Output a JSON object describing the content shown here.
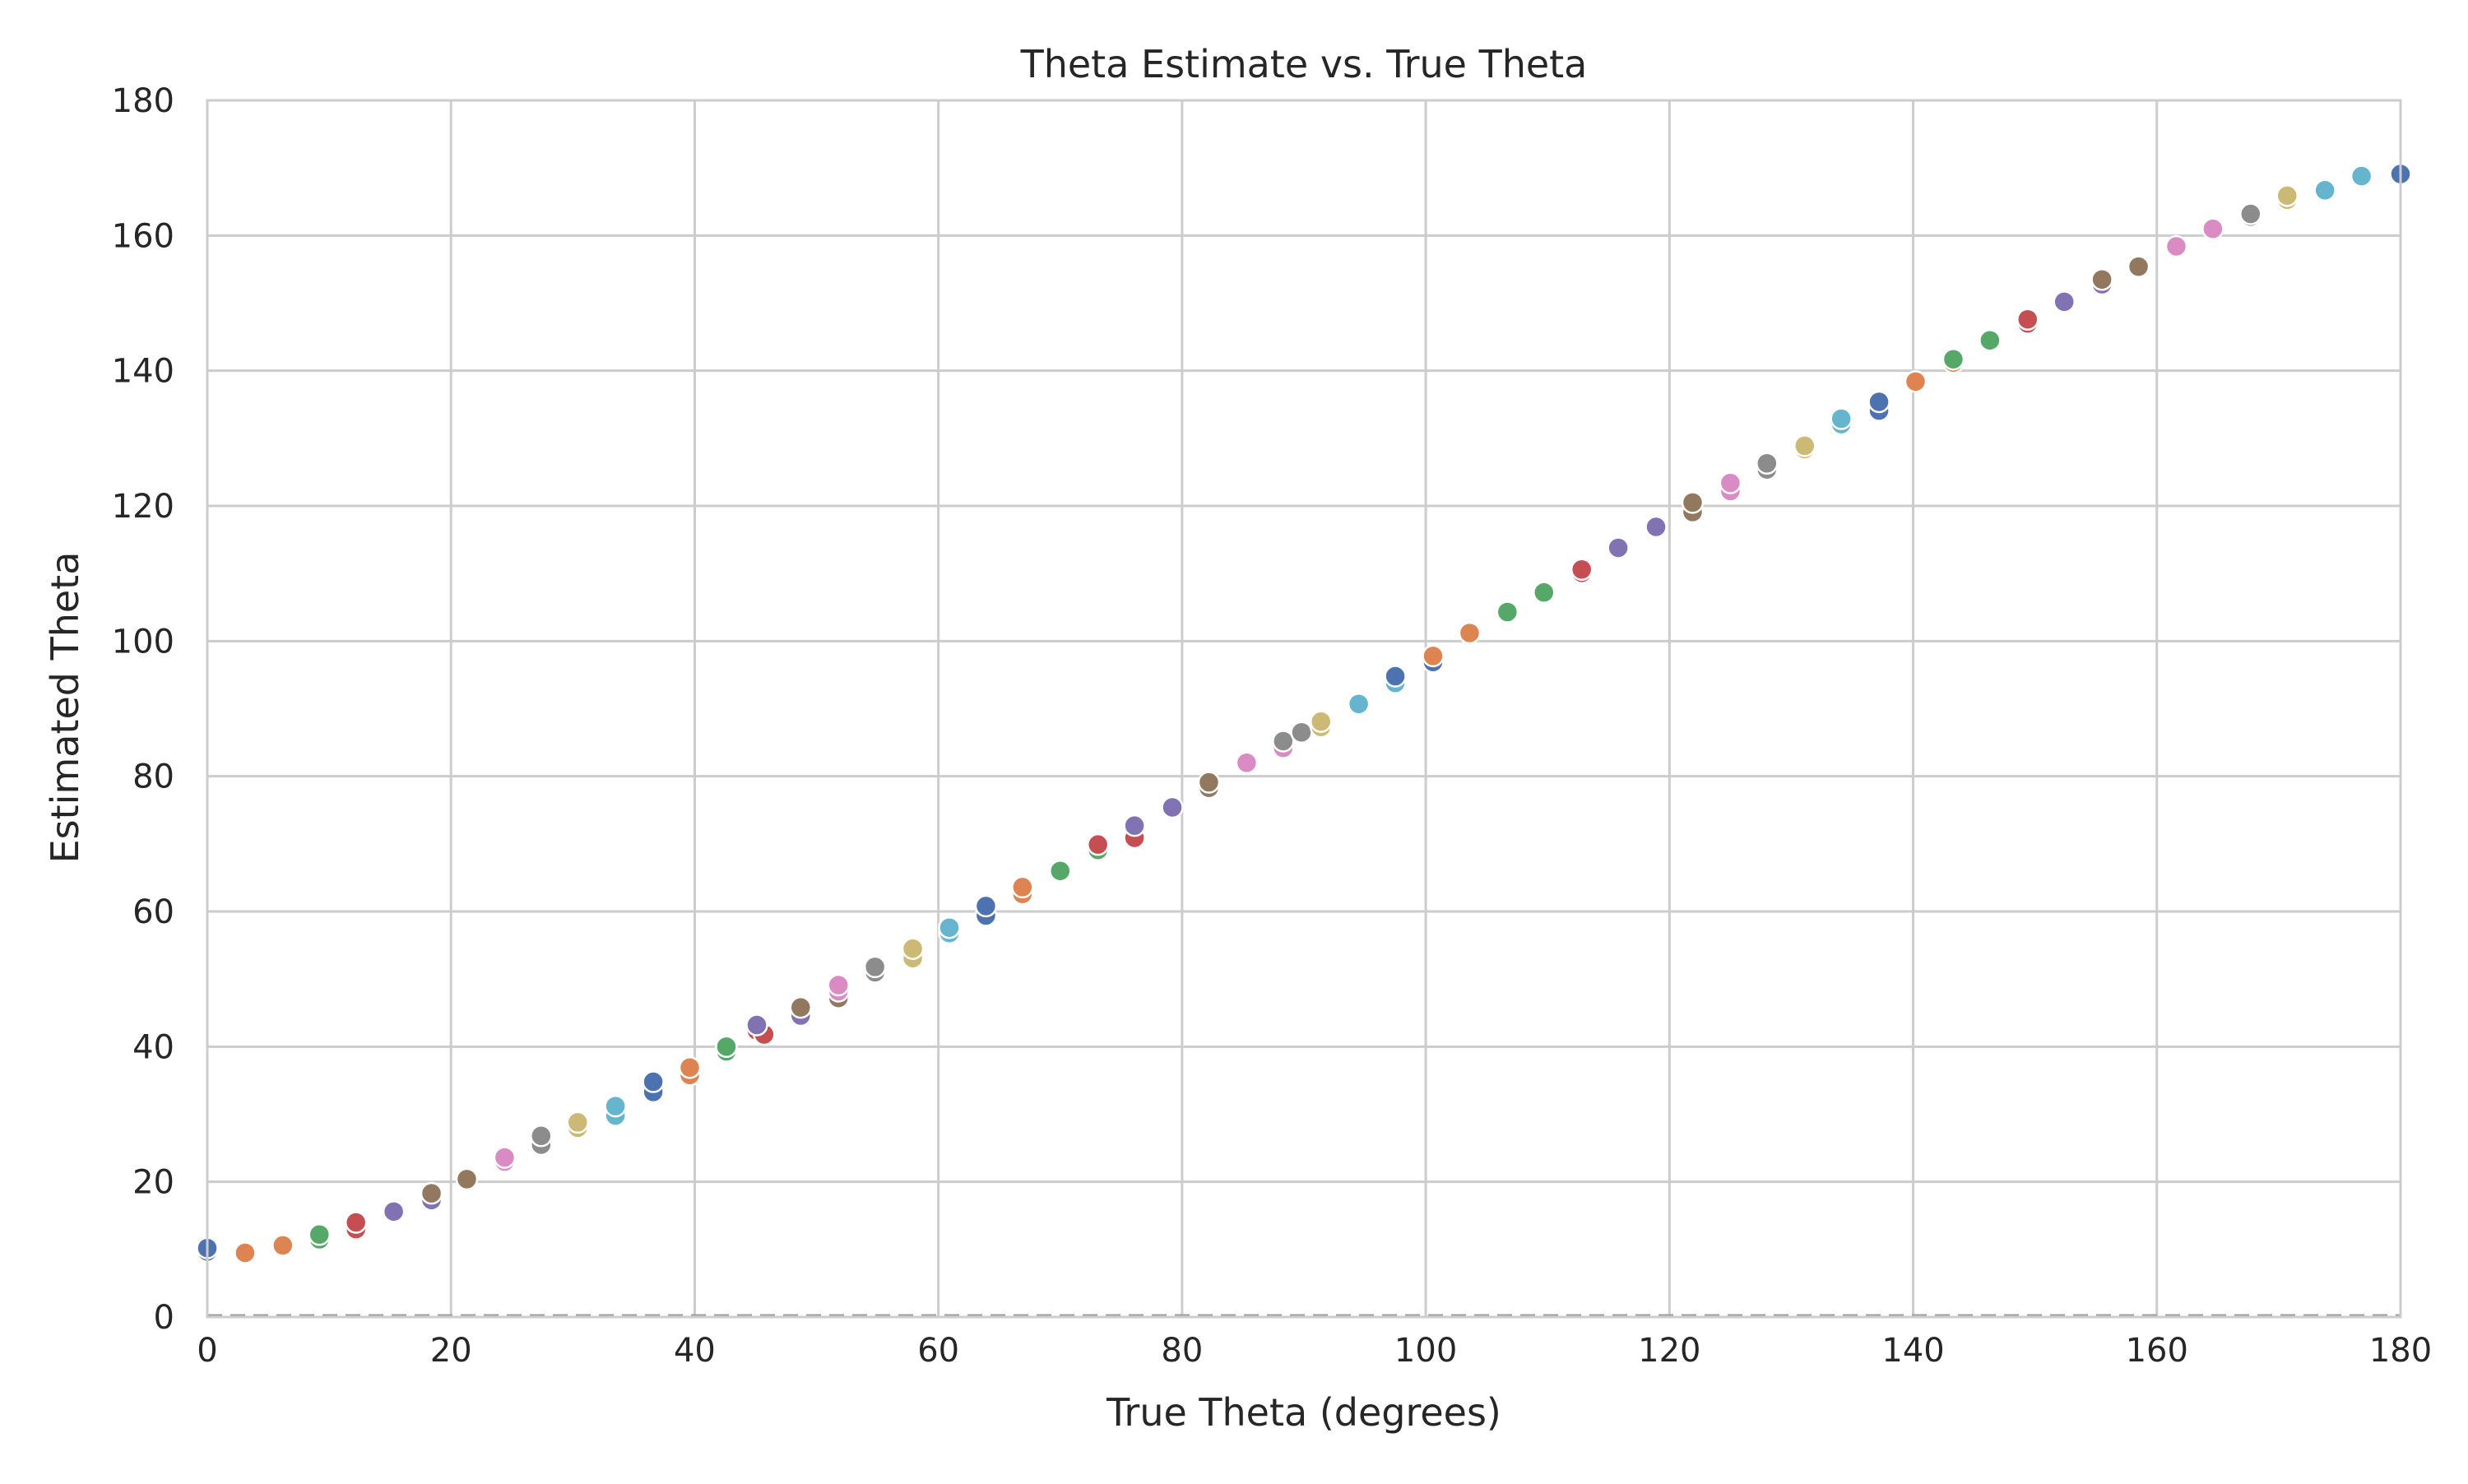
{
  "chart_data": {
    "type": "scatter",
    "title": "Theta Estimate vs. True Theta",
    "xlabel": "True Theta (degrees)",
    "ylabel": "Estimated Theta",
    "xlim": [
      0,
      180
    ],
    "ylim": [
      0,
      180
    ],
    "xticks": [
      "0",
      "20",
      "40",
      "60",
      "80",
      "100",
      "120",
      "140",
      "160",
      "180"
    ],
    "yticks": [
      "0",
      "20",
      "40",
      "60",
      "80",
      "100",
      "120",
      "140",
      "160",
      "180"
    ],
    "grid": true,
    "legend": "none",
    "reference_line": {
      "y": 0,
      "style": "dashed",
      "color": "#a0a0a0"
    },
    "palette": [
      "#4c72b0",
      "#dd8452",
      "#55a868",
      "#c44e52",
      "#8172b3",
      "#937860",
      "#da8bc3",
      "#8c8c8c",
      "#ccb974",
      "#64b5cd"
    ],
    "points": [
      [
        0,
        9.7
      ],
      [
        0,
        10.2
      ],
      [
        3.1,
        9.5
      ],
      [
        6.2,
        10.6
      ],
      [
        9.2,
        11.5
      ],
      [
        9.2,
        12.2
      ],
      [
        12.2,
        13
      ],
      [
        12.2,
        14
      ],
      [
        15.3,
        15.6
      ],
      [
        18.4,
        17.3
      ],
      [
        18.4,
        18.3
      ],
      [
        21.3,
        20.4
      ],
      [
        24.4,
        23
      ],
      [
        24.4,
        23.6
      ],
      [
        27.4,
        25.5
      ],
      [
        27.4,
        26.8
      ],
      [
        30.4,
        28
      ],
      [
        30.4,
        28.8
      ],
      [
        33.5,
        29.8
      ],
      [
        33.5,
        31.2
      ],
      [
        36.6,
        33.3
      ],
      [
        36.6,
        34.8
      ],
      [
        39.6,
        35.8
      ],
      [
        39.6,
        36.9
      ],
      [
        42.6,
        39.3
      ],
      [
        42.6,
        40
      ],
      [
        45.1,
        42.4
      ],
      [
        45.7,
        41.8
      ],
      [
        45.1,
        43.2
      ],
      [
        48.7,
        44.6
      ],
      [
        48.7,
        45.8
      ],
      [
        51.8,
        47.2
      ],
      [
        51.8,
        48.2
      ],
      [
        51.8,
        49.1
      ],
      [
        54.8,
        51
      ],
      [
        54.8,
        51.8
      ],
      [
        57.9,
        53.1
      ],
      [
        57.9,
        54.5
      ],
      [
        60.9,
        56.8
      ],
      [
        60.9,
        57.6
      ],
      [
        63.9,
        59.4
      ],
      [
        63.9,
        60.8
      ],
      [
        66.9,
        62.6
      ],
      [
        66.9,
        63.6
      ],
      [
        70,
        66
      ],
      [
        73.1,
        69.1
      ],
      [
        73.1,
        69.9
      ],
      [
        76.1,
        70.9
      ],
      [
        76.1,
        72.7
      ],
      [
        79.2,
        75.4
      ],
      [
        82.2,
        78.3
      ],
      [
        82.2,
        79.1
      ],
      [
        85.3,
        82
      ],
      [
        88.3,
        84.2
      ],
      [
        88.3,
        85.2
      ],
      [
        89.8,
        86.5
      ],
      [
        91.4,
        87.3
      ],
      [
        91.4,
        88.1
      ],
      [
        94.5,
        90.7
      ],
      [
        97.5,
        93.8
      ],
      [
        97.5,
        94.8
      ],
      [
        100.6,
        96.9
      ],
      [
        100.6,
        97.8
      ],
      [
        103.6,
        101.2
      ],
      [
        106.7,
        104.3
      ],
      [
        109.7,
        107.2
      ],
      [
        112.8,
        110.1
      ],
      [
        112.8,
        110.6
      ],
      [
        115.8,
        113.8
      ],
      [
        118.9,
        116.9
      ],
      [
        121.9,
        119.1
      ],
      [
        121.9,
        120.5
      ],
      [
        125,
        122.2
      ],
      [
        125,
        123.4
      ],
      [
        128,
        125.4
      ],
      [
        128,
        126.3
      ],
      [
        131.1,
        128.4
      ],
      [
        131.1,
        128.9
      ],
      [
        134.1,
        132.1
      ],
      [
        134.1,
        132.9
      ],
      [
        137.2,
        134.1
      ],
      [
        137.2,
        135.4
      ],
      [
        140.2,
        138.4
      ],
      [
        143.3,
        141.2
      ],
      [
        143.3,
        141.7
      ],
      [
        146.3,
        144.5
      ],
      [
        149.4,
        147
      ],
      [
        149.4,
        147.6
      ],
      [
        152.4,
        150.2
      ],
      [
        155.5,
        152.8
      ],
      [
        155.5,
        153.5
      ],
      [
        158.5,
        155.4
      ],
      [
        161.6,
        158.4
      ],
      [
        164.6,
        161
      ],
      [
        167.7,
        162.8
      ],
      [
        167.7,
        163.2
      ],
      [
        170.7,
        165.3
      ],
      [
        170.7,
        165.9
      ],
      [
        173.8,
        166.7
      ],
      [
        176.8,
        168.8
      ],
      [
        180,
        169.1
      ]
    ]
  }
}
